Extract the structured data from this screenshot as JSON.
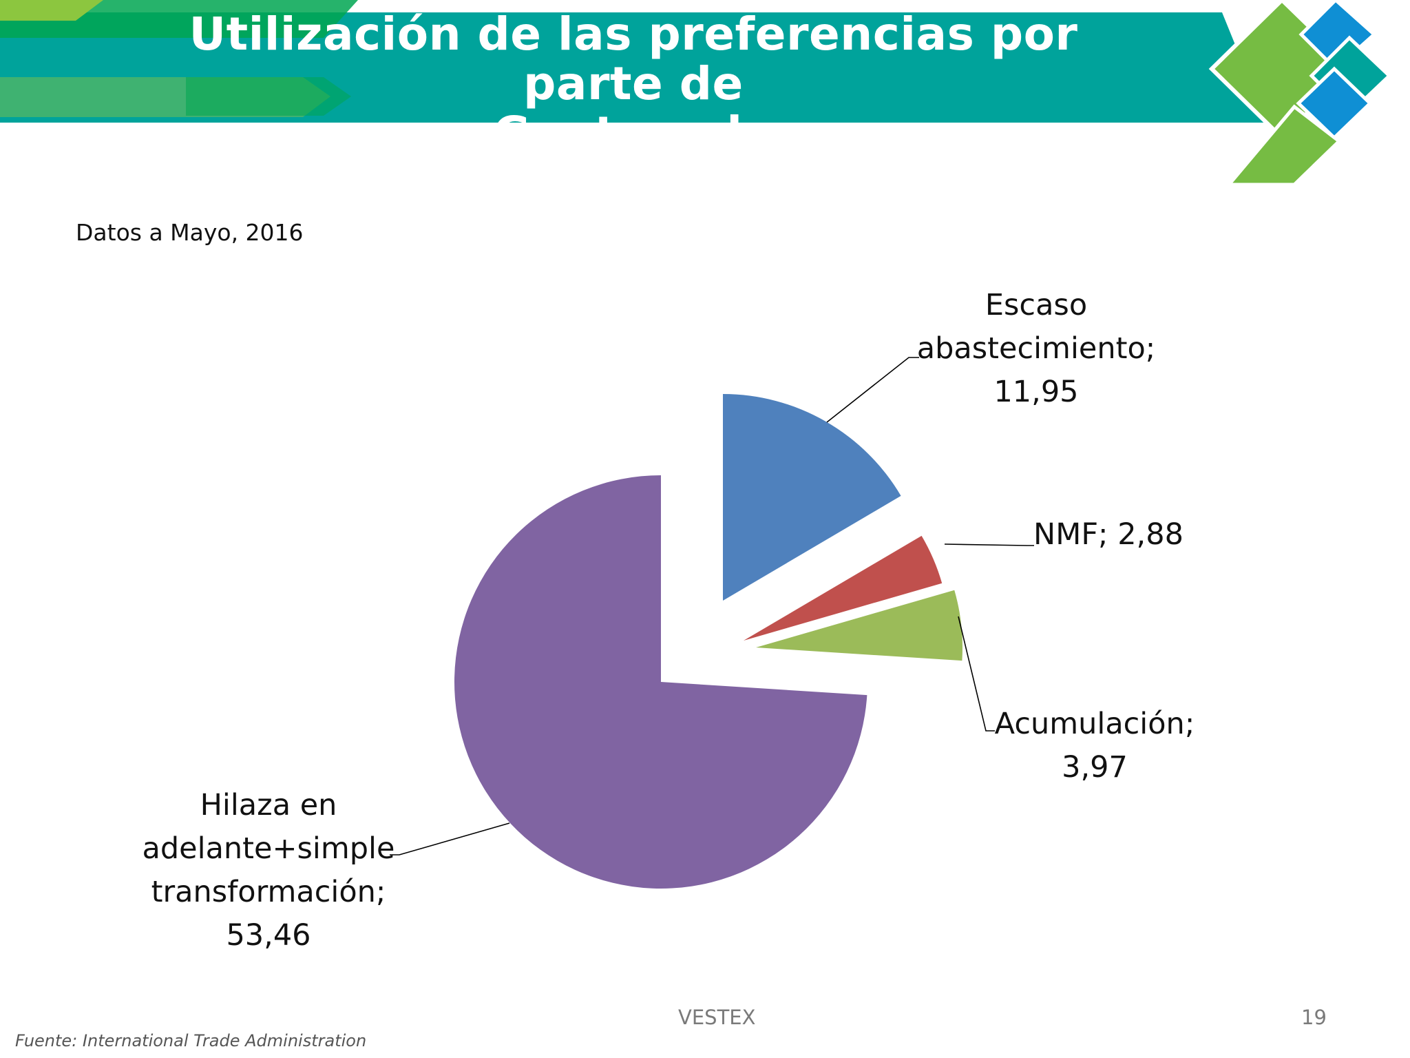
{
  "slide": {
    "title_line1": "Utilización de las preferencias por parte de",
    "title_line2": "Guatemala",
    "subtitle": "Datos a Mayo, 2016",
    "footer_center": "VESTEX",
    "page_number": "19",
    "source": "Fuente:  International Trade Administration"
  },
  "colors": {
    "header_teal": "#00a39b",
    "header_green": "#00a651",
    "header_lime": "#8cc63f",
    "logo_green": "#76bc43",
    "logo_blue": "#0f8fd4",
    "logo_teal": "#00a39b"
  },
  "chart_data": {
    "type": "pie",
    "exploded": true,
    "show_legend": false,
    "slices": [
      {
        "label_lines": [
          "Escaso",
          "abastecimiento;",
          "11,95"
        ],
        "name": "Escaso abastecimiento",
        "value": 11.95,
        "color": "#4f81bd"
      },
      {
        "label_lines": [
          "NMF; 2,88"
        ],
        "name": "NMF",
        "value": 2.88,
        "color": "#c0504d"
      },
      {
        "label_lines": [
          "Acumulación;",
          "3,97"
        ],
        "name": "Acumulación",
        "value": 3.97,
        "color": "#9bbb59"
      },
      {
        "label_lines": [
          "Hilaza en",
          "adelante+simple",
          "transformación;",
          "53,46"
        ],
        "name": "Hilaza en adelante+simple transformación",
        "value": 53.46,
        "color": "#8064a2"
      }
    ]
  }
}
